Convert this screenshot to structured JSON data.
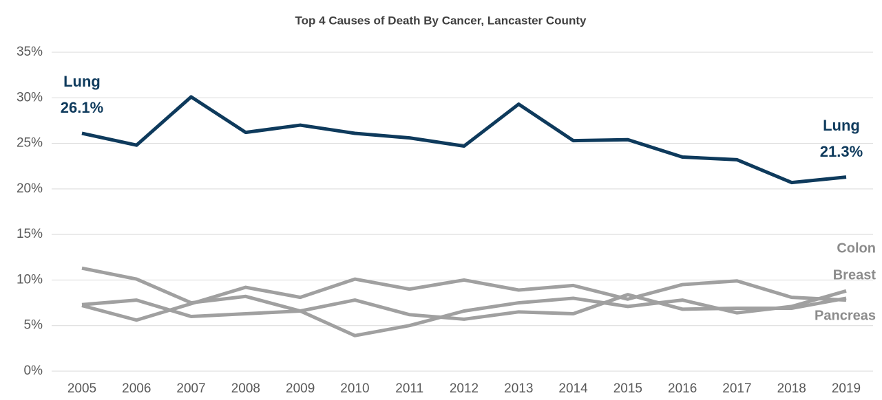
{
  "chart_data": {
    "type": "line",
    "title": "Top 4 Causes of Death By Cancer, Lancaster County",
    "categories": [
      "2005",
      "2006",
      "2007",
      "2008",
      "2009",
      "2010",
      "2011",
      "2012",
      "2013",
      "2014",
      "2015",
      "2016",
      "2017",
      "2018",
      "2019"
    ],
    "series": [
      {
        "name": "Lung",
        "color": "#0e3a5c",
        "values": [
          26.1,
          24.8,
          30.1,
          26.2,
          27.0,
          26.1,
          25.6,
          24.7,
          29.3,
          25.3,
          25.4,
          23.5,
          23.2,
          20.7,
          21.3
        ],
        "value_labels": [
          "26.1%",
          null,
          null,
          null,
          null,
          null,
          null,
          null,
          null,
          null,
          null,
          null,
          null,
          null,
          "21.3%"
        ]
      },
      {
        "name": "Colon",
        "color": "#a0a0a0",
        "values": [
          11.3,
          10.1,
          7.5,
          8.2,
          6.6,
          3.9,
          5.0,
          6.6,
          7.5,
          8.0,
          7.1,
          7.8,
          6.4,
          7.1,
          8.8
        ]
      },
      {
        "name": "Breast",
        "color": "#a0a0a0",
        "values": [
          7.2,
          5.6,
          7.4,
          9.2,
          8.1,
          10.1,
          9.0,
          10.0,
          8.9,
          9.4,
          7.9,
          9.5,
          9.9,
          8.1,
          7.8
        ]
      },
      {
        "name": "Pancreas",
        "color": "#a0a0a0",
        "values": [
          7.3,
          7.8,
          6.0,
          6.3,
          6.6,
          7.8,
          6.2,
          5.7,
          6.5,
          6.3,
          8.4,
          6.8,
          6.9,
          6.9,
          8.0
        ]
      }
    ],
    "ylim": [
      0,
      35
    ],
    "yticks": [
      {
        "value": 0,
        "label": "0%"
      },
      {
        "value": 5,
        "label": "5%"
      },
      {
        "value": 10,
        "label": "10%"
      },
      {
        "value": 15,
        "label": "15%"
      },
      {
        "value": 20,
        "label": "20%"
      },
      {
        "value": 25,
        "label": "25%"
      },
      {
        "value": 30,
        "label": "30%"
      },
      {
        "value": 35,
        "label": "35%"
      }
    ],
    "grid": true
  }
}
